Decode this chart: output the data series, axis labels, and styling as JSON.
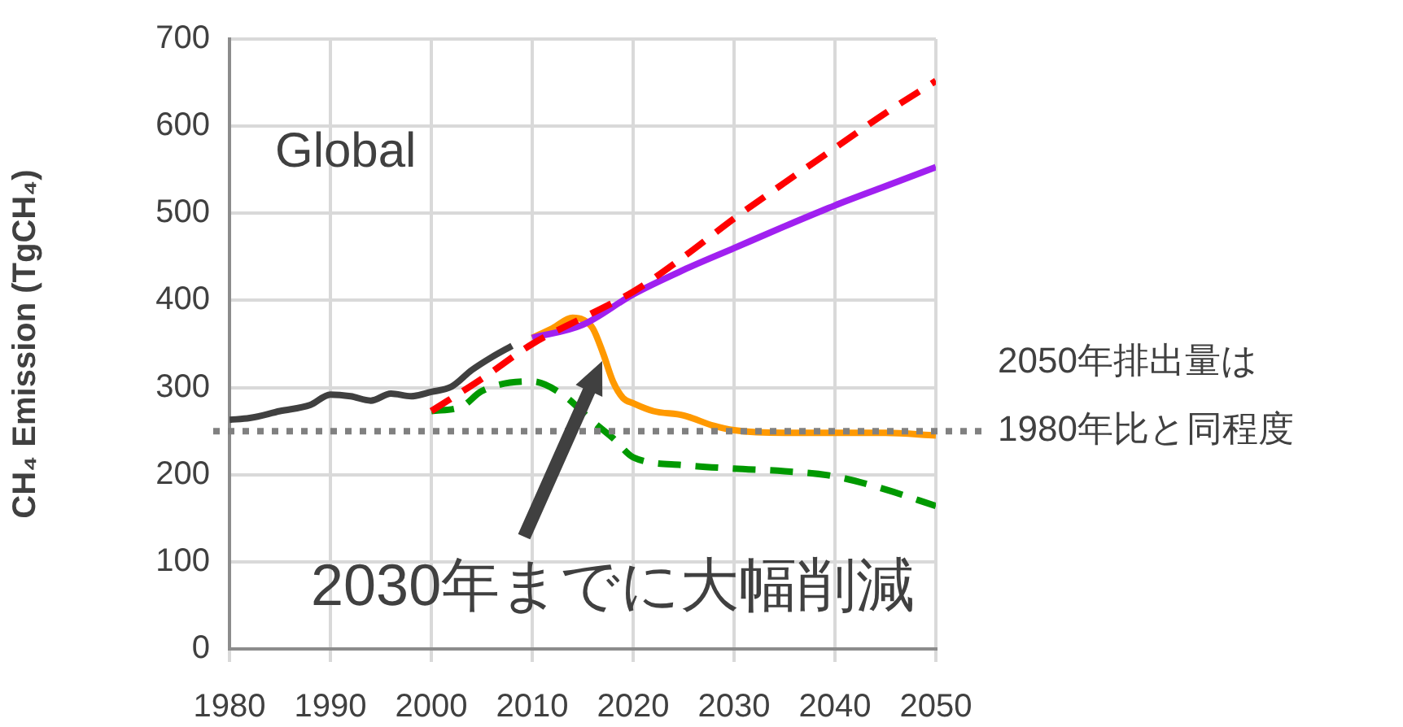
{
  "chart_data": {
    "type": "line",
    "ylabel": "CH₄ Emission (TgCH₄)",
    "xlim": [
      1980,
      2050
    ],
    "xticks": [
      1980,
      1990,
      2000,
      2010,
      2020,
      2030,
      2040,
      2050
    ],
    "ylim": [
      0,
      700
    ],
    "yticks": [
      0,
      100,
      200,
      300,
      400,
      500,
      600,
      700
    ],
    "grid": true,
    "legend": false,
    "marker": "none",
    "series": [
      {
        "color": "#404040",
        "line_style": "solid",
        "x": [
          1980,
          1982,
          1985,
          1988,
          1990,
          1992,
          1994,
          1996,
          1998,
          2000,
          2002,
          2004,
          2006,
          2008
        ],
        "values": [
          263,
          265,
          273,
          280,
          292,
          290,
          285,
          293,
          290,
          295,
          301,
          320,
          335,
          348
        ]
      },
      {
        "color": "#ff0000",
        "line_style": "dashed",
        "x": [
          2000,
          2005,
          2010,
          2015,
          2020,
          2025,
          2030,
          2035,
          2040,
          2045,
          2050
        ],
        "values": [
          273,
          310,
          350,
          380,
          410,
          450,
          494,
          535,
          575,
          615,
          652
        ]
      },
      {
        "color": "#a020f0",
        "line_style": "solid",
        "x": [
          2010,
          2015,
          2020,
          2025,
          2030,
          2035,
          2040,
          2045,
          2050
        ],
        "values": [
          357,
          372,
          407,
          435,
          460,
          485,
          509,
          531,
          553
        ]
      },
      {
        "color": "#ff9900",
        "line_style": "solid",
        "x": [
          2010,
          2012,
          2014,
          2015,
          2016,
          2017,
          2018,
          2019,
          2020,
          2022,
          2025,
          2028,
          2030,
          2035,
          2040,
          2045,
          2050
        ],
        "values": [
          357,
          368,
          380,
          378,
          368,
          340,
          307,
          288,
          282,
          273,
          268,
          256,
          251,
          248,
          248,
          248,
          245
        ]
      },
      {
        "color": "#009900",
        "line_style": "dashed",
        "x": [
          2000,
          2003,
          2005,
          2010,
          2013,
          2016,
          2018,
          2020,
          2025,
          2030,
          2035,
          2040,
          2045,
          2050
        ],
        "values": [
          273,
          278,
          296,
          307,
          292,
          261,
          242,
          220,
          211,
          207,
          204,
          198,
          183,
          164
        ]
      }
    ],
    "ref_lines": [
      {
        "axis": "y",
        "value": 250,
        "label": "2050年排出量は\n1980年比と同程度",
        "color": "#808080",
        "line_style": "dotted"
      }
    ],
    "annotations": [
      "Global",
      "2030年までに大幅削減"
    ]
  }
}
